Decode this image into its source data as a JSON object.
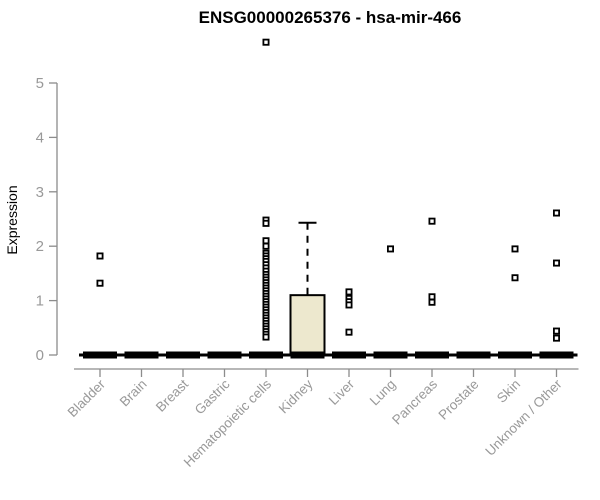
{
  "chart_data": {
    "type": "boxplot",
    "title": "ENSG00000265376 - hsa-mir-466",
    "ylabel": "Expression",
    "xlabel": "",
    "ylim": [
      0,
      5
    ],
    "yticks": [
      0,
      1,
      2,
      3,
      4,
      5
    ],
    "grid": false,
    "legend": false,
    "categories": [
      "Bladder",
      "Brain",
      "Breast",
      "Gastric",
      "Hematopoietic cells",
      "Kidney",
      "Liver",
      "Lung",
      "Pancreas",
      "Prostate",
      "Skin",
      "Unknown / Other"
    ],
    "boxes": [
      {
        "category": "Bladder",
        "whisker_low": 0,
        "q1": 0,
        "median": 0,
        "q3": 0,
        "whisker_high": 0,
        "outliers": [
          1.82,
          1.32
        ]
      },
      {
        "category": "Brain",
        "whisker_low": 0,
        "q1": 0,
        "median": 0,
        "q3": 0,
        "whisker_high": 0,
        "outliers": []
      },
      {
        "category": "Breast",
        "whisker_low": 0,
        "q1": 0,
        "median": 0,
        "q3": 0,
        "whisker_high": 0,
        "outliers": []
      },
      {
        "category": "Gastric",
        "whisker_low": 0,
        "q1": 0,
        "median": 0,
        "q3": 0,
        "whisker_high": 0,
        "outliers": []
      },
      {
        "category": "Hematopoietic cells",
        "whisker_low": 0,
        "q1": 0,
        "median": 0,
        "q3": 0,
        "whisker_high": 0,
        "outliers": [
          5.75,
          2.48,
          2.42,
          2.1,
          2.0,
          1.87,
          1.82,
          1.77,
          1.72,
          1.66,
          1.6,
          1.54,
          1.48,
          1.43,
          1.38,
          1.33,
          1.28,
          1.23,
          1.18,
          1.13,
          1.08,
          1.03,
          0.98,
          0.93,
          0.88,
          0.83,
          0.78,
          0.73,
          0.68,
          0.63,
          0.58,
          0.53,
          0.48,
          0.43,
          0.38,
          0.33
        ]
      },
      {
        "category": "Kidney",
        "whisker_low": 0,
        "q1": 0,
        "median": 0,
        "q3": 1.1,
        "whisker_high": 2.43,
        "outliers": []
      },
      {
        "category": "Liver",
        "whisker_low": 0,
        "q1": 0,
        "median": 0,
        "q3": 0,
        "whisker_high": 0,
        "outliers": [
          1.16,
          1.04,
          0.98,
          0.92,
          0.42
        ]
      },
      {
        "category": "Lung",
        "whisker_low": 0,
        "q1": 0,
        "median": 0,
        "q3": 0,
        "whisker_high": 0,
        "outliers": [
          1.95
        ]
      },
      {
        "category": "Pancreas",
        "whisker_low": 0,
        "q1": 0,
        "median": 0,
        "q3": 0,
        "whisker_high": 0,
        "outliers": [
          2.46,
          1.07,
          0.97
        ]
      },
      {
        "category": "Prostate",
        "whisker_low": 0,
        "q1": 0,
        "median": 0,
        "q3": 0,
        "whisker_high": 0,
        "outliers": []
      },
      {
        "category": "Skin",
        "whisker_low": 0,
        "q1": 0,
        "median": 0,
        "q3": 0,
        "whisker_high": 0,
        "outliers": [
          1.95,
          1.42
        ]
      },
      {
        "category": "Unknown / Other",
        "whisker_low": 0,
        "q1": 0,
        "median": 0,
        "q3": 0,
        "whisker_high": 0,
        "outliers": [
          2.61,
          1.69,
          0.44,
          0.31
        ]
      }
    ],
    "colors": {
      "box_fill": "#EDE8CE",
      "box_stroke": "#000000",
      "median": "#000000",
      "whisker": "#000000",
      "outlier_stroke": "#000000",
      "outlier_fill": "#FFFFFF",
      "axis_line": "#8C8C8C",
      "tick_label": "#999999",
      "title": "#000000",
      "background": "#FFFFFF"
    }
  }
}
